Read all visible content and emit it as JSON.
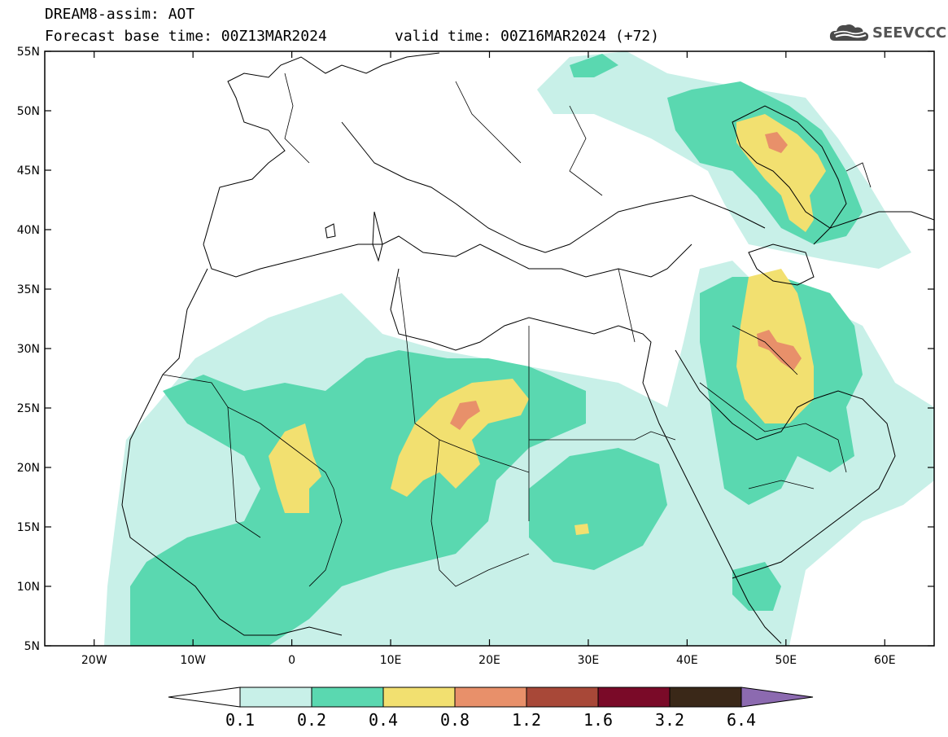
{
  "header": {
    "title_line1": "DREAM8-assim: AOT",
    "title_line2_base": "Forecast base time: 00Z13MAR2024",
    "title_line2_valid": "valid time: 00Z16MAR2024 (+72)"
  },
  "logo": {
    "icon": "cloud-icon",
    "text": "SEEVCCC"
  },
  "map": {
    "lon_range": [
      -25,
      65
    ],
    "lat_range": [
      5,
      55
    ],
    "lat_ticks": [
      {
        "value": 55,
        "label": "55N"
      },
      {
        "value": 50,
        "label": "50N"
      },
      {
        "value": 45,
        "label": "45N"
      },
      {
        "value": 40,
        "label": "40N"
      },
      {
        "value": 35,
        "label": "35N"
      },
      {
        "value": 30,
        "label": "30N"
      },
      {
        "value": 25,
        "label": "25N"
      },
      {
        "value": 20,
        "label": "20N"
      },
      {
        "value": 15,
        "label": "15N"
      },
      {
        "value": 10,
        "label": "10N"
      },
      {
        "value": 5,
        "label": "5N"
      }
    ],
    "lon_ticks": [
      {
        "value": -20,
        "label": "20W"
      },
      {
        "value": -10,
        "label": "10W"
      },
      {
        "value": 0,
        "label": "0"
      },
      {
        "value": 10,
        "label": "10E"
      },
      {
        "value": 20,
        "label": "20E"
      },
      {
        "value": 30,
        "label": "30E"
      },
      {
        "value": 40,
        "label": "40E"
      },
      {
        "value": 50,
        "label": "50E"
      },
      {
        "value": 60,
        "label": "60E"
      }
    ]
  },
  "colorbar": {
    "labels": [
      "0.1",
      "0.2",
      "0.4",
      "0.8",
      "1.2",
      "1.6",
      "3.2",
      "6.4"
    ],
    "colors": [
      "#ffffff",
      "#c8f0e8",
      "#5ad8b0",
      "#f2e070",
      "#e8906a",
      "#a84838",
      "#7a0a28",
      "#3a2818",
      "#8c6ab0"
    ]
  }
}
